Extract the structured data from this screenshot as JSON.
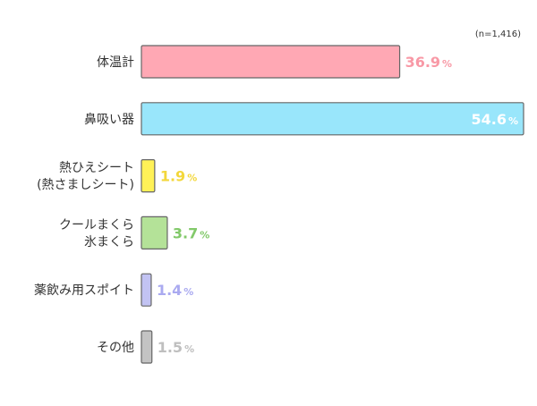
{
  "chart_data": {
    "type": "bar",
    "orientation": "horizontal",
    "note": "(n=1,416)",
    "unit": "%",
    "xlim": [
      0,
      54.6
    ],
    "grid": false,
    "categories": [
      [
        "体温計"
      ],
      [
        "鼻吸い器"
      ],
      [
        "熱ひえシート",
        "(熱さましシート)"
      ],
      [
        "クールまくら",
        "氷まくら"
      ],
      [
        "薬飲み用スポイト"
      ],
      [
        "その他"
      ]
    ],
    "values": [
      36.9,
      54.6,
      1.9,
      3.7,
      1.4,
      1.5
    ],
    "value_labels": [
      "36.9",
      "54.6",
      "1.9",
      "3.7",
      "1.4",
      "1.5"
    ],
    "colors": [
      "#ffa8b4",
      "#99e6fb",
      "#fff157",
      "#b4e298",
      "#c2c3f3",
      "#c3c3c3"
    ],
    "label_colors": [
      "#f899a6",
      "#ffffff",
      "#f3d73b",
      "#82c96a",
      "#aaaaf0",
      "#bfbfbf"
    ]
  }
}
